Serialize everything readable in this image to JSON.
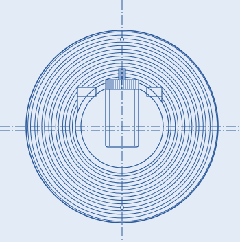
{
  "drawing": {
    "background": "#e3ebf6",
    "line_color": "#2b5a9c",
    "hatch_color": "#3b67a8",
    "centerline_style": "dash-dot",
    "coil_turns": 14,
    "parts": [
      "spiral-coil",
      "inner-ring",
      "shaft-cylinder",
      "knurled-cap",
      "mounting-holes",
      "centerlines"
    ]
  }
}
